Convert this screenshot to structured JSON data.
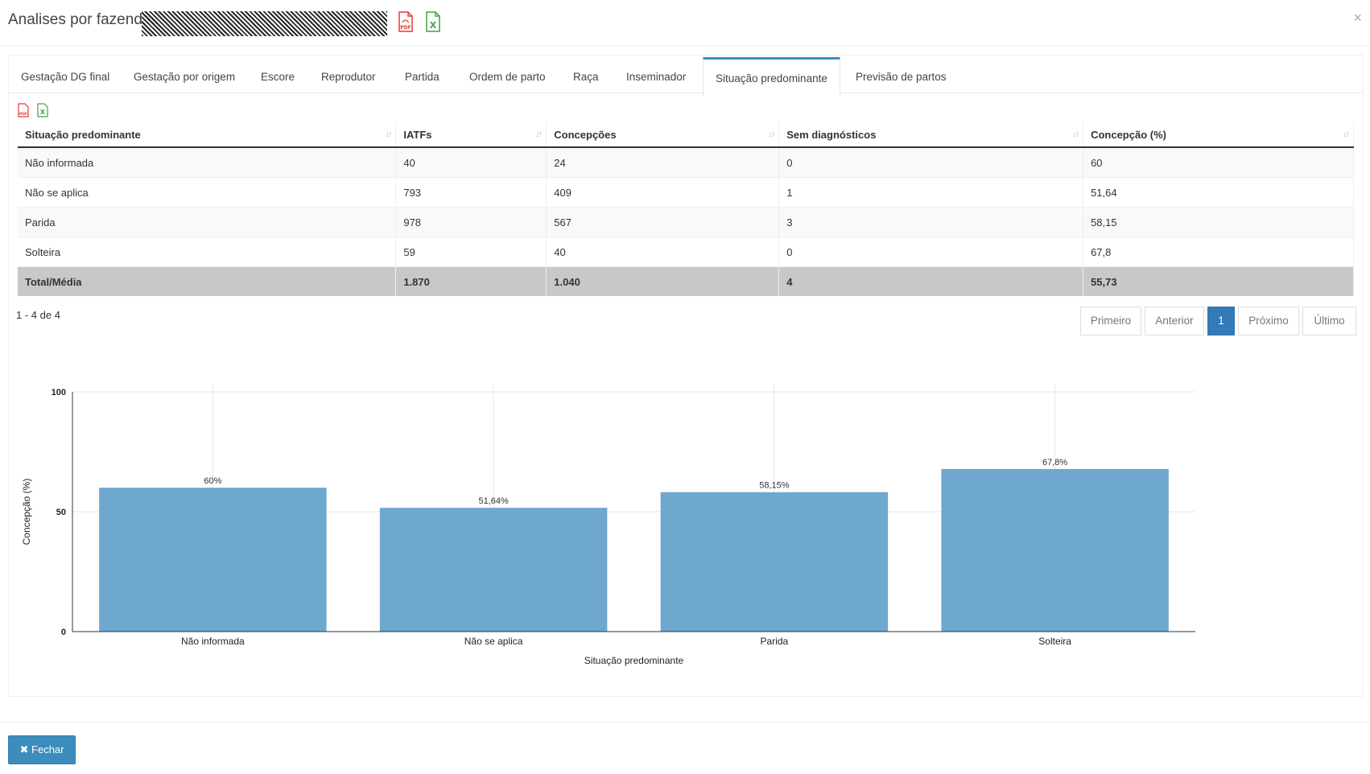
{
  "header": {
    "title": "Analises por fazendas",
    "pdf_icon": "pdf-file-icon",
    "excel_icon": "excel-file-icon",
    "close_label": "×"
  },
  "tabs": [
    {
      "label": "Gestação DG final"
    },
    {
      "label": "Gestação por origem"
    },
    {
      "label": "Escore"
    },
    {
      "label": "Reprodutor"
    },
    {
      "label": "Partida"
    },
    {
      "label": "Ordem de parto"
    },
    {
      "label": "Raça"
    },
    {
      "label": "Inseminador"
    },
    {
      "label": "Situação predominante",
      "active": true
    },
    {
      "label": "Previsão de partos"
    }
  ],
  "table": {
    "headers": [
      "Situação predominante",
      "IATFs",
      "Concepções",
      "Sem diagnósticos",
      "Concepção (%)"
    ],
    "rows": [
      [
        "Não informada",
        "40",
        "24",
        "0",
        "60"
      ],
      [
        "Não se aplica",
        "793",
        "409",
        "1",
        "51,64"
      ],
      [
        "Parida",
        "978",
        "567",
        "3",
        "58,15"
      ],
      [
        "Solteira",
        "59",
        "40",
        "0",
        "67,8"
      ]
    ],
    "total": [
      "Total/Média",
      "1.870",
      "1.040",
      "4",
      "55,73"
    ]
  },
  "pagination": {
    "count_text": "1 - 4 de 4",
    "first": "Primeiro",
    "previous": "Anterior",
    "current": "1",
    "next": "Próximo",
    "last": "Último"
  },
  "chart_data": {
    "type": "bar",
    "categories": [
      "Não informada",
      "Não se aplica",
      "Parida",
      "Solteira"
    ],
    "values": [
      60,
      51.64,
      58.15,
      67.8
    ],
    "data_labels": [
      "60%",
      "51,64%",
      "58,15%",
      "67,8%"
    ],
    "xlabel": "Situação predominante",
    "ylabel": "Concepção (%)",
    "ylim": [
      0,
      100
    ],
    "yticks": [
      "0",
      "50",
      "100"
    ],
    "grid": true,
    "bar_color": "#6fa8cf"
  },
  "footer": {
    "close_button": "Fechar",
    "close_icon": "times-icon"
  }
}
